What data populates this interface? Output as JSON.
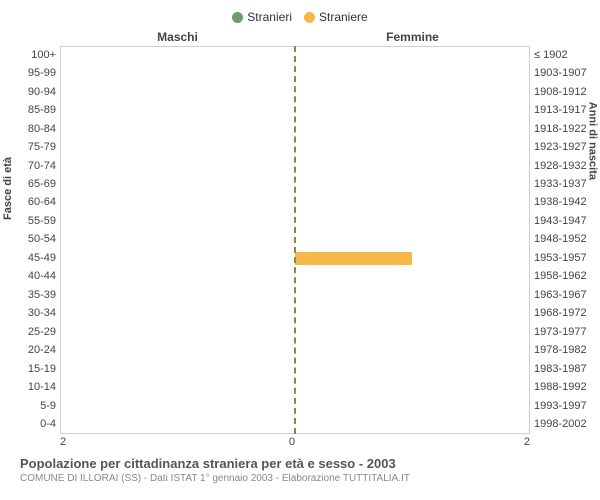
{
  "legend": {
    "male": {
      "label": "Stranieri",
      "color": "#6b9e6b"
    },
    "female": {
      "label": "Straniere",
      "color": "#f7b84a"
    }
  },
  "chart": {
    "type": "population-pyramid",
    "background_color": "#ffffff",
    "border_color": "#d0d0d0",
    "center_line_color": "#888844",
    "male_title": "Maschi",
    "female_title": "Femmine",
    "y_axis_left_title": "Fasce di età",
    "y_axis_right_title": "Anni di nascita",
    "xmax": 2,
    "x_ticks_left": [
      "2",
      "0"
    ],
    "x_ticks_right": [
      "0",
      "2"
    ],
    "age_groups": [
      {
        "age": "100+",
        "years": "≤ 1902",
        "male": 0,
        "female": 0
      },
      {
        "age": "95-99",
        "years": "1903-1907",
        "male": 0,
        "female": 0
      },
      {
        "age": "90-94",
        "years": "1908-1912",
        "male": 0,
        "female": 0
      },
      {
        "age": "85-89",
        "years": "1913-1917",
        "male": 0,
        "female": 0
      },
      {
        "age": "80-84",
        "years": "1918-1922",
        "male": 0,
        "female": 0
      },
      {
        "age": "75-79",
        "years": "1923-1927",
        "male": 0,
        "female": 0
      },
      {
        "age": "70-74",
        "years": "1928-1932",
        "male": 0,
        "female": 0
      },
      {
        "age": "65-69",
        "years": "1933-1937",
        "male": 0,
        "female": 0
      },
      {
        "age": "60-64",
        "years": "1938-1942",
        "male": 0,
        "female": 0
      },
      {
        "age": "55-59",
        "years": "1943-1947",
        "male": 0,
        "female": 0
      },
      {
        "age": "50-54",
        "years": "1948-1952",
        "male": 0,
        "female": 0
      },
      {
        "age": "45-49",
        "years": "1953-1957",
        "male": 0,
        "female": 1
      },
      {
        "age": "40-44",
        "years": "1958-1962",
        "male": 0,
        "female": 0
      },
      {
        "age": "35-39",
        "years": "1963-1967",
        "male": 0,
        "female": 0
      },
      {
        "age": "30-34",
        "years": "1968-1972",
        "male": 0,
        "female": 0
      },
      {
        "age": "25-29",
        "years": "1973-1977",
        "male": 0,
        "female": 0
      },
      {
        "age": "20-24",
        "years": "1978-1982",
        "male": 0,
        "female": 0
      },
      {
        "age": "15-19",
        "years": "1983-1987",
        "male": 0,
        "female": 0
      },
      {
        "age": "10-14",
        "years": "1988-1992",
        "male": 0,
        "female": 0
      },
      {
        "age": "5-9",
        "years": "1993-1997",
        "male": 0,
        "female": 0
      },
      {
        "age": "0-4",
        "years": "1998-2002",
        "male": 0,
        "female": 0
      }
    ]
  },
  "footer": {
    "title": "Popolazione per cittadinanza straniera per età e sesso - 2003",
    "subtitle": "COMUNE DI ILLORAI (SS) - Dati ISTAT 1° gennaio 2003 - Elaborazione TUTTITALIA.IT"
  }
}
